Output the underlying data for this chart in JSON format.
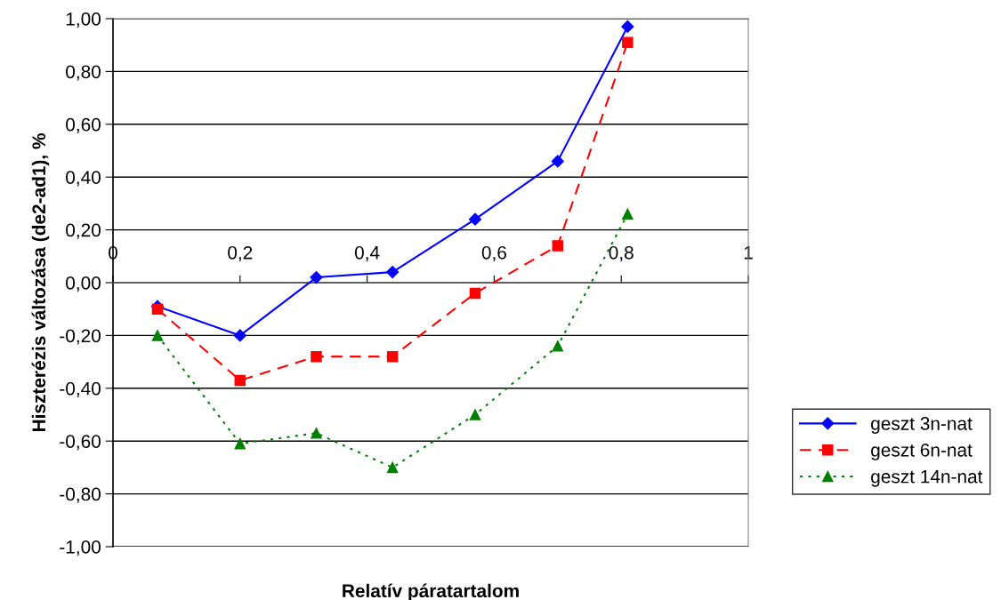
{
  "chart_data": {
    "type": "line",
    "xlabel": "Relatív páratartalom",
    "ylabel": "Hiszterézis változása (de2-ad1), %",
    "x": [
      0.07,
      0.2,
      0.32,
      0.44,
      0.57,
      0.7,
      0.81
    ],
    "series": [
      {
        "name": "geszt 3n-nat",
        "color": "#0000ff",
        "marker": "diamond",
        "line_style": "solid",
        "values": [
          -0.09,
          -0.2,
          0.02,
          0.04,
          0.24,
          0.46,
          0.97
        ]
      },
      {
        "name": "geszt 6n-nat",
        "color": "#ff0000",
        "marker": "square",
        "line_style": "dashed",
        "values": [
          -0.1,
          -0.37,
          -0.28,
          -0.28,
          -0.04,
          0.14,
          0.91
        ]
      },
      {
        "name": "geszt 14n-nat",
        "color": "#008000",
        "marker": "triangle",
        "line_style": "dotted",
        "values": [
          -0.2,
          -0.61,
          -0.57,
          -0.7,
          -0.5,
          -0.24,
          0.26
        ]
      }
    ],
    "xlim": [
      0,
      1
    ],
    "xticks": [
      {
        "value": 0,
        "label": "0"
      },
      {
        "value": 0.2,
        "label": "0,2"
      },
      {
        "value": 0.4,
        "label": "0,4"
      },
      {
        "value": 0.6,
        "label": "0,6"
      },
      {
        "value": 0.8,
        "label": "0,8"
      },
      {
        "value": 1,
        "label": "1"
      }
    ],
    "ylim": [
      -1,
      1
    ],
    "yticks": [
      {
        "value": -1,
        "label": "-1,00"
      },
      {
        "value": -0.8,
        "label": "-0,80"
      },
      {
        "value": -0.6,
        "label": "-0,60"
      },
      {
        "value": -0.4,
        "label": "-0,40"
      },
      {
        "value": -0.2,
        "label": "-0,20"
      },
      {
        "value": 0,
        "label": "0,00"
      },
      {
        "value": 0.2,
        "label": "0,20"
      },
      {
        "value": 0.4,
        "label": "0,40"
      },
      {
        "value": 0.6,
        "label": "0,60"
      },
      {
        "value": 0.8,
        "label": "0,80"
      },
      {
        "value": 1,
        "label": "1,00"
      }
    ],
    "grid": "y",
    "legend": "right"
  }
}
